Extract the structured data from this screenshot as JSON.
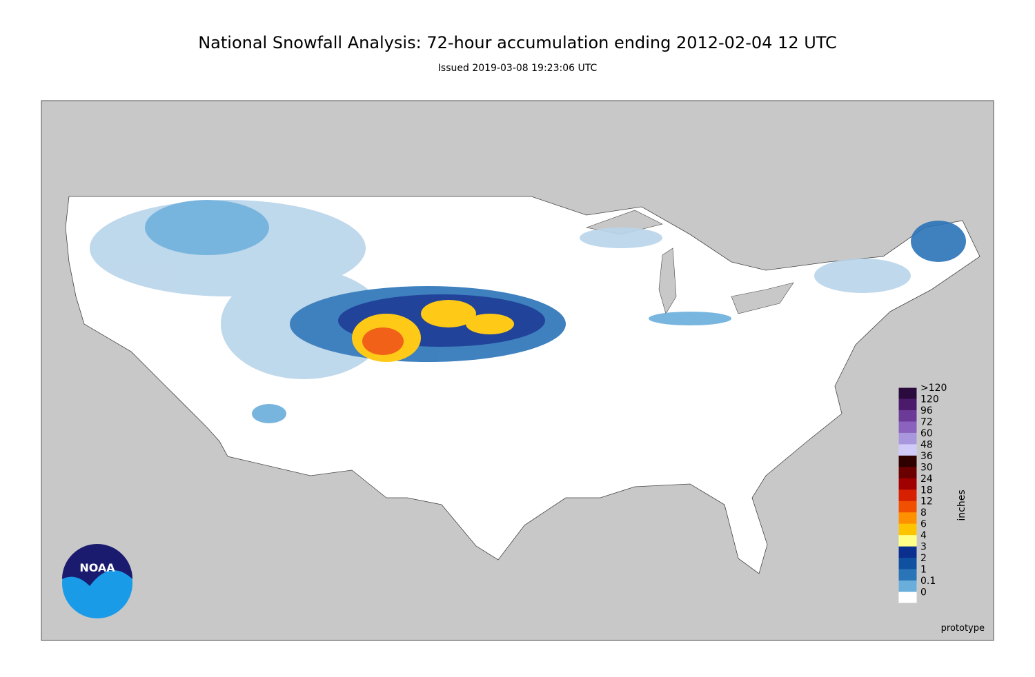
{
  "header": {
    "title": "National Snowfall Analysis: 72-hour accumulation ending 2012-02-04 12 UTC",
    "subtitle": "Issued 2019-03-08 19:23:06 UTC"
  },
  "legend": {
    "unit": "inches",
    "items": [
      {
        "label": ">120",
        "color": "#2b0a3d"
      },
      {
        "label": "120",
        "color": "#4c1a6b"
      },
      {
        "label": "96",
        "color": "#6c3a97"
      },
      {
        "label": "72",
        "color": "#8b62bd"
      },
      {
        "label": "60",
        "color": "#a897dc"
      },
      {
        "label": "48",
        "color": "#cfcaf7"
      },
      {
        "label": "36",
        "color": "#2e0000"
      },
      {
        "label": "30",
        "color": "#6b0000"
      },
      {
        "label": "24",
        "color": "#a00000"
      },
      {
        "label": "18",
        "color": "#d62000"
      },
      {
        "label": "12",
        "color": "#f05000"
      },
      {
        "label": "8",
        "color": "#ff9000"
      },
      {
        "label": "6",
        "color": "#ffc400"
      },
      {
        "label": "4",
        "color": "#ffff88"
      },
      {
        "label": "3",
        "color": "#0a2f8f"
      },
      {
        "label": "2",
        "color": "#1050a0"
      },
      {
        "label": "1",
        "color": "#2a74b8"
      },
      {
        "label": "0.1",
        "color": "#6aaedb"
      },
      {
        "label": "0",
        "color": "#ffffff"
      }
    ]
  },
  "logo": "NOAA",
  "footer": "prototype"
}
